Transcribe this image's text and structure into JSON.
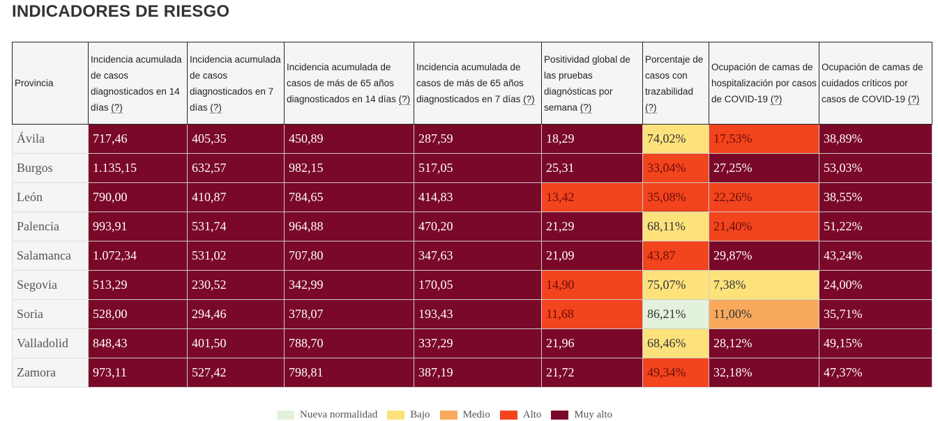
{
  "title": "INDICADORES DE RIESGO",
  "headers": [
    {
      "text": "Provincia",
      "help": ""
    },
    {
      "text": "Incidencia acumulada de casos diagnosticados en 14 días",
      "help": "(?)"
    },
    {
      "text": "Incidencia acumulada de casos diagnosticados en 7 días",
      "help": "(?)"
    },
    {
      "text": "Incidencia acumulada de casos de más de 65 años diagnosticados en 14 días",
      "help": "(?)"
    },
    {
      "text": "Incidencia acumulada de casos de más de 65 años diagnosticados en 7 días",
      "help": "(?)"
    },
    {
      "text": "Positividad global de las pruebas diagnósticas por semana",
      "help": "(?)"
    },
    {
      "text": "Porcentaje de casos con trazabilidad",
      "help": "(?)"
    },
    {
      "text": "Ocupación de camas de hospitalización por casos de COVID-19",
      "help": "(?)"
    },
    {
      "text": "Ocupación de camas de cuidados críticos por casos de COVID-19",
      "help": "(?)"
    }
  ],
  "rows": [
    {
      "province": "Ávila",
      "values": [
        "717,46",
        "405,35",
        "450,89",
        "287,59",
        "18,29",
        "74,02%",
        "17,53%",
        "38,89%"
      ],
      "levels": [
        "muyalto",
        "muyalto",
        "muyalto",
        "muyalto",
        "muyalto",
        "bajo",
        "alto",
        "muyalto"
      ]
    },
    {
      "province": "Burgos",
      "values": [
        "1.135,15",
        "632,57",
        "982,15",
        "517,05",
        "25,31",
        "33,04%",
        "27,25%",
        "53,03%"
      ],
      "levels": [
        "muyalto",
        "muyalto",
        "muyalto",
        "muyalto",
        "muyalto",
        "alto",
        "muyalto",
        "muyalto"
      ]
    },
    {
      "province": "León",
      "values": [
        "790,00",
        "410,87",
        "784,65",
        "414,83",
        "13,42",
        "35,08%",
        "22,26%",
        "38,55%"
      ],
      "levels": [
        "muyalto",
        "muyalto",
        "muyalto",
        "muyalto",
        "alto",
        "alto",
        "alto",
        "muyalto"
      ]
    },
    {
      "province": "Palencia",
      "values": [
        "993,91",
        "531,74",
        "964,88",
        "470,20",
        "21,29",
        "68,11%",
        "21,40%",
        "51,22%"
      ],
      "levels": [
        "muyalto",
        "muyalto",
        "muyalto",
        "muyalto",
        "muyalto",
        "bajo",
        "alto",
        "muyalto"
      ]
    },
    {
      "province": "Salamanca",
      "values": [
        "1.072,34",
        "531,02",
        "707,80",
        "347,63",
        "21,09",
        "43,87",
        "29,87%",
        "43,24%"
      ],
      "levels": [
        "muyalto",
        "muyalto",
        "muyalto",
        "muyalto",
        "muyalto",
        "alto",
        "muyalto",
        "muyalto"
      ]
    },
    {
      "province": "Segovia",
      "values": [
        "513,29",
        "230,52",
        "342,99",
        "170,05",
        "14,90",
        "75,07%",
        "7,38%",
        "24,00%"
      ],
      "levels": [
        "muyalto",
        "muyalto",
        "muyalto",
        "muyalto",
        "alto",
        "bajo",
        "bajo",
        "muyalto"
      ]
    },
    {
      "province": "Soria",
      "values": [
        "528,00",
        "294,46",
        "378,07",
        "193,43",
        "11,68",
        "86,21%",
        "11,00%",
        "35,71%"
      ],
      "levels": [
        "muyalto",
        "muyalto",
        "muyalto",
        "muyalto",
        "alto",
        "nueva",
        "medio",
        "muyalto"
      ]
    },
    {
      "province": "Valladolid",
      "values": [
        "848,43",
        "401,50",
        "788,70",
        "337,29",
        "21,96",
        "68,46%",
        "28,12%",
        "49,15%"
      ],
      "levels": [
        "muyalto",
        "muyalto",
        "muyalto",
        "muyalto",
        "muyalto",
        "bajo",
        "muyalto",
        "muyalto"
      ]
    },
    {
      "province": "Zamora",
      "values": [
        "973,11",
        "527,42",
        "798,81",
        "387,19",
        "21,72",
        "49,34%",
        "32,18%",
        "47,37%"
      ],
      "levels": [
        "muyalto",
        "muyalto",
        "muyalto",
        "muyalto",
        "muyalto",
        "alto",
        "muyalto",
        "muyalto"
      ]
    }
  ],
  "legend": [
    {
      "key": "nueva",
      "label": "Nueva normalidad",
      "color": "#e3f2dc"
    },
    {
      "key": "bajo",
      "label": "Bajo",
      "color": "#fde27c"
    },
    {
      "key": "medio",
      "label": "Medio",
      "color": "#f9a95c"
    },
    {
      "key": "alto",
      "label": "Alto",
      "color": "#f2441d"
    },
    {
      "key": "muyalto",
      "label": "Muy alto",
      "color": "#7a0829"
    }
  ]
}
